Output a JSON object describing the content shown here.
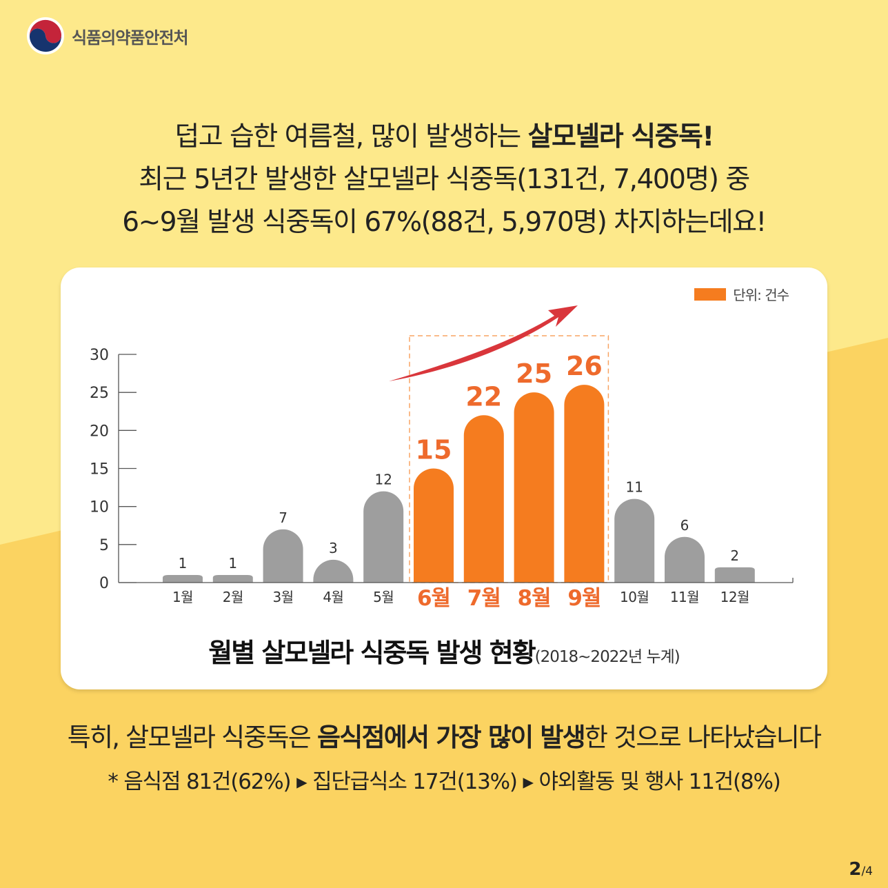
{
  "logo": {
    "text": "식품의약품안전처"
  },
  "headline": {
    "line1_pre": "덥고 습한 여름철, 많이 발생하는 ",
    "line1_bold": "살모넬라 식중독!",
    "line2": "최근 5년간 발생한 살모넬라 식중독(131건, 7,400명) 중",
    "line3": "6~9월 발생 식중독이 67%(88건, 5,970명) 차지하는데요!"
  },
  "chart_data": {
    "type": "bar",
    "title": "월별 살모넬라 식중독 발생 현황",
    "subtitle": "(2018~2022년 누계)",
    "legend": "단위: 건수",
    "categories": [
      "1월",
      "2월",
      "3월",
      "4월",
      "5월",
      "6월",
      "7월",
      "8월",
      "9월",
      "10월",
      "11월",
      "12월"
    ],
    "values": [
      1,
      1,
      7,
      3,
      12,
      15,
      22,
      25,
      26,
      11,
      6,
      2
    ],
    "highlighted": [
      "6월",
      "7월",
      "8월",
      "9월"
    ],
    "ylim": [
      0,
      30
    ],
    "yticks": [
      0,
      5,
      10,
      15,
      20,
      25,
      30
    ],
    "xlabel": "",
    "ylabel": "",
    "colors": {
      "normal": "#9e9e9e",
      "highlight": "#f57c1f",
      "highlight_label": "#ee6a2c",
      "arrow": "#d9363b"
    }
  },
  "summary": {
    "line1_pre": "특히, 살모넬라 식중독은 ",
    "line1_bold": "음식점에서 가장 많이 발생",
    "line1_post": "한 것으로 나타났습니다",
    "line2": "* 음식점 81건(62%) ▸ 집단급식소 17건(13%) ▸ 야외활동 및 행사 11건(8%)"
  },
  "page": {
    "current": "2",
    "total": "/4"
  }
}
